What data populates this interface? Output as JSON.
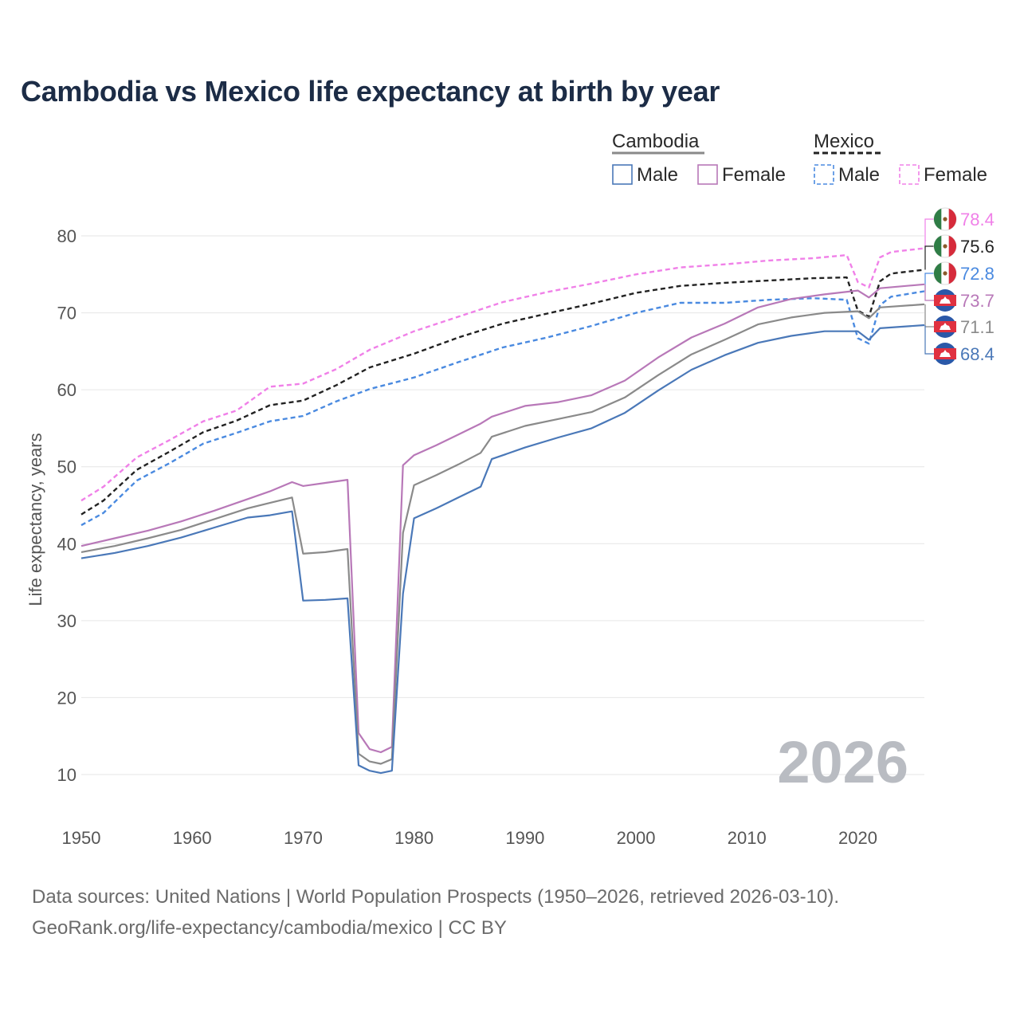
{
  "title": "Cambodia vs Mexico life expectancy at birth by year",
  "year_watermark": "2026",
  "legend": {
    "groups": [
      {
        "name": "Cambodia",
        "style": "solid",
        "color": "#8a8a8a",
        "items": [
          {
            "label": "Male",
            "color": "#4a78b8"
          },
          {
            "label": "Female",
            "color": "#b878b8"
          }
        ]
      },
      {
        "name": "Mexico",
        "style": "dashed",
        "color": "#222222",
        "items": [
          {
            "label": "Male",
            "color": "#4a8ae0"
          },
          {
            "label": "Female",
            "color": "#f080e8"
          }
        ]
      }
    ]
  },
  "chart_data": {
    "type": "line",
    "title": "Cambodia vs Mexico life expectancy at birth by year",
    "xlabel": "",
    "ylabel": "Life expectancy, years",
    "xlim": [
      1950,
      2026
    ],
    "ylim": [
      10,
      82
    ],
    "xticks": [
      1950,
      1960,
      1970,
      1980,
      1990,
      2000,
      2010,
      2020
    ],
    "yticks": [
      10,
      20,
      30,
      40,
      50,
      60,
      70,
      80
    ],
    "grid": true,
    "series": [
      {
        "name": "Mexico Female",
        "country": "Mexico",
        "dashed": true,
        "color": "#f080e8",
        "end_label": "78.4",
        "points": [
          [
            1950,
            45.6
          ],
          [
            1952,
            47.4
          ],
          [
            1955,
            51.2
          ],
          [
            1958,
            53.5
          ],
          [
            1961,
            55.9
          ],
          [
            1964,
            57.3
          ],
          [
            1967,
            60.4
          ],
          [
            1970,
            60.8
          ],
          [
            1973,
            62.7
          ],
          [
            1976,
            65.2
          ],
          [
            1980,
            67.6
          ],
          [
            1984,
            69.5
          ],
          [
            1988,
            71.4
          ],
          [
            1992,
            72.7
          ],
          [
            1996,
            73.8
          ],
          [
            2000,
            75.0
          ],
          [
            2004,
            75.9
          ],
          [
            2008,
            76.3
          ],
          [
            2012,
            76.8
          ],
          [
            2016,
            77.1
          ],
          [
            2019,
            77.5
          ],
          [
            2020,
            74.0
          ],
          [
            2021,
            73.3
          ],
          [
            2022,
            77.2
          ],
          [
            2023,
            77.9
          ],
          [
            2026,
            78.4
          ]
        ]
      },
      {
        "name": "Mexico Total",
        "country": "Mexico",
        "dashed": true,
        "color": "#222222",
        "end_label": "75.6",
        "points": [
          [
            1950,
            43.8
          ],
          [
            1952,
            45.6
          ],
          [
            1955,
            49.6
          ],
          [
            1958,
            52.0
          ],
          [
            1961,
            54.5
          ],
          [
            1964,
            56.0
          ],
          [
            1967,
            58.0
          ],
          [
            1970,
            58.6
          ],
          [
            1973,
            60.6
          ],
          [
            1976,
            62.9
          ],
          [
            1980,
            64.7
          ],
          [
            1984,
            66.8
          ],
          [
            1988,
            68.6
          ],
          [
            1992,
            69.9
          ],
          [
            1996,
            71.2
          ],
          [
            2000,
            72.6
          ],
          [
            2004,
            73.5
          ],
          [
            2008,
            73.9
          ],
          [
            2012,
            74.2
          ],
          [
            2016,
            74.5
          ],
          [
            2019,
            74.6
          ],
          [
            2020,
            70.3
          ],
          [
            2021,
            69.5
          ],
          [
            2022,
            74.1
          ],
          [
            2023,
            75.1
          ],
          [
            2026,
            75.6
          ]
        ]
      },
      {
        "name": "Mexico Male",
        "country": "Mexico",
        "dashed": true,
        "color": "#4a8ae0",
        "end_label": "72.8",
        "points": [
          [
            1950,
            42.4
          ],
          [
            1952,
            44.0
          ],
          [
            1955,
            48.2
          ],
          [
            1958,
            50.5
          ],
          [
            1961,
            53.0
          ],
          [
            1964,
            54.4
          ],
          [
            1967,
            55.9
          ],
          [
            1970,
            56.6
          ],
          [
            1973,
            58.5
          ],
          [
            1976,
            60.1
          ],
          [
            1980,
            61.6
          ],
          [
            1984,
            63.6
          ],
          [
            1988,
            65.5
          ],
          [
            1992,
            66.8
          ],
          [
            1996,
            68.3
          ],
          [
            2000,
            70.0
          ],
          [
            2004,
            71.3
          ],
          [
            2008,
            71.3
          ],
          [
            2012,
            71.7
          ],
          [
            2016,
            71.9
          ],
          [
            2019,
            71.7
          ],
          [
            2020,
            66.7
          ],
          [
            2021,
            66.0
          ],
          [
            2022,
            71.0
          ],
          [
            2023,
            72.1
          ],
          [
            2026,
            72.8
          ]
        ]
      },
      {
        "name": "Cambodia Female",
        "country": "Cambodia",
        "dashed": false,
        "color": "#b878b8",
        "end_label": "73.7",
        "points": [
          [
            1950,
            39.7
          ],
          [
            1953,
            40.7
          ],
          [
            1956,
            41.7
          ],
          [
            1959,
            42.9
          ],
          [
            1962,
            44.3
          ],
          [
            1965,
            45.8
          ],
          [
            1967,
            46.8
          ],
          [
            1969,
            48.0
          ],
          [
            1970,
            47.5
          ],
          [
            1972,
            47.9
          ],
          [
            1974,
            48.3
          ],
          [
            1975,
            15.4
          ],
          [
            1976,
            13.3
          ],
          [
            1977,
            12.9
          ],
          [
            1978,
            13.6
          ],
          [
            1979,
            50.2
          ],
          [
            1980,
            51.5
          ],
          [
            1982,
            52.8
          ],
          [
            1984,
            54.2
          ],
          [
            1986,
            55.6
          ],
          [
            1987,
            56.5
          ],
          [
            1990,
            57.9
          ],
          [
            1993,
            58.4
          ],
          [
            1996,
            59.3
          ],
          [
            1999,
            61.2
          ],
          [
            2002,
            64.2
          ],
          [
            2005,
            66.8
          ],
          [
            2008,
            68.6
          ],
          [
            2011,
            70.7
          ],
          [
            2014,
            71.8
          ],
          [
            2017,
            72.4
          ],
          [
            2020,
            72.9
          ],
          [
            2021,
            72.0
          ],
          [
            2022,
            73.2
          ],
          [
            2026,
            73.7
          ]
        ]
      },
      {
        "name": "Cambodia Total",
        "country": "Cambodia",
        "dashed": false,
        "color": "#8a8a8a",
        "end_label": "71.1",
        "points": [
          [
            1950,
            38.9
          ],
          [
            1953,
            39.7
          ],
          [
            1956,
            40.7
          ],
          [
            1959,
            41.8
          ],
          [
            1962,
            43.2
          ],
          [
            1965,
            44.6
          ],
          [
            1967,
            45.3
          ],
          [
            1969,
            46.0
          ],
          [
            1970,
            38.7
          ],
          [
            1972,
            38.9
          ],
          [
            1974,
            39.3
          ],
          [
            1975,
            12.7
          ],
          [
            1976,
            11.7
          ],
          [
            1977,
            11.4
          ],
          [
            1978,
            12.0
          ],
          [
            1979,
            41.4
          ],
          [
            1980,
            47.6
          ],
          [
            1982,
            48.9
          ],
          [
            1984,
            50.3
          ],
          [
            1986,
            51.8
          ],
          [
            1987,
            53.9
          ],
          [
            1990,
            55.3
          ],
          [
            1993,
            56.2
          ],
          [
            1996,
            57.1
          ],
          [
            1999,
            59.0
          ],
          [
            2002,
            61.9
          ],
          [
            2005,
            64.6
          ],
          [
            2008,
            66.5
          ],
          [
            2011,
            68.5
          ],
          [
            2014,
            69.4
          ],
          [
            2017,
            70.0
          ],
          [
            2020,
            70.2
          ],
          [
            2021,
            69.3
          ],
          [
            2022,
            70.7
          ],
          [
            2026,
            71.1
          ]
        ]
      },
      {
        "name": "Cambodia Male",
        "country": "Cambodia",
        "dashed": false,
        "color": "#4a78b8",
        "end_label": "68.4",
        "points": [
          [
            1950,
            38.1
          ],
          [
            1953,
            38.8
          ],
          [
            1956,
            39.7
          ],
          [
            1959,
            40.8
          ],
          [
            1962,
            42.1
          ],
          [
            1965,
            43.4
          ],
          [
            1967,
            43.7
          ],
          [
            1969,
            44.2
          ],
          [
            1970,
            32.6
          ],
          [
            1972,
            32.7
          ],
          [
            1974,
            32.9
          ],
          [
            1975,
            11.2
          ],
          [
            1976,
            10.5
          ],
          [
            1977,
            10.2
          ],
          [
            1978,
            10.5
          ],
          [
            1979,
            33.5
          ],
          [
            1980,
            43.3
          ],
          [
            1982,
            44.6
          ],
          [
            1984,
            46.0
          ],
          [
            1986,
            47.4
          ],
          [
            1987,
            51.0
          ],
          [
            1990,
            52.5
          ],
          [
            1993,
            53.8
          ],
          [
            1996,
            55.0
          ],
          [
            1999,
            57.0
          ],
          [
            2002,
            59.9
          ],
          [
            2005,
            62.6
          ],
          [
            2008,
            64.5
          ],
          [
            2011,
            66.1
          ],
          [
            2014,
            67.0
          ],
          [
            2017,
            67.6
          ],
          [
            2020,
            67.6
          ],
          [
            2021,
            66.5
          ],
          [
            2022,
            68.0
          ],
          [
            2026,
            68.4
          ]
        ]
      }
    ]
  },
  "source": {
    "line1": "Data sources: United Nations | World Population Prospects (1950–2026, retrieved 2026-03-10).",
    "line2": "GeoRank.org/life-expectancy/cambodia/mexico | CC BY"
  }
}
